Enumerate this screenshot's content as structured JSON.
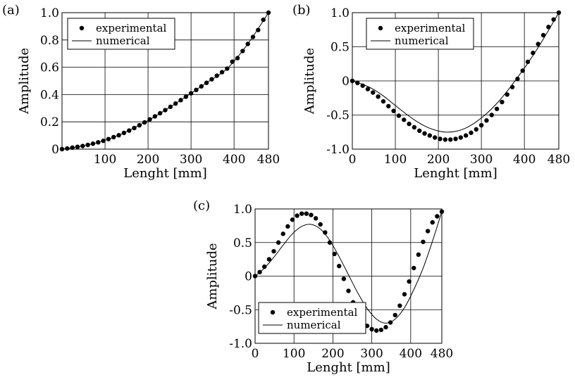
{
  "chart_data": [
    {
      "panel_label": "(a)",
      "type": "scatter",
      "xlabel": "Lenght  [mm]",
      "ylabel": "Amplitude",
      "xlim": [
        0,
        480
      ],
      "ylim": [
        0,
        1.0
      ],
      "xticks": [
        100,
        200,
        300,
        400,
        480
      ],
      "xtick_labels": [
        "100",
        "200",
        "300",
        "400",
        "480"
      ],
      "yticks": [
        0,
        0.2,
        0.4,
        0.6,
        0.8,
        1.0
      ],
      "ytick_labels": [
        "0",
        "0.2",
        "0.4",
        "0.6",
        "0.8",
        "1.0"
      ],
      "grid": true,
      "legend_position": "top-left",
      "series": [
        {
          "name": "experimental",
          "style": "markers",
          "x": [
            0,
            12,
            24,
            36,
            48,
            60,
            72,
            84,
            96,
            108,
            120,
            132,
            144,
            156,
            168,
            180,
            192,
            204,
            216,
            228,
            240,
            252,
            264,
            276,
            288,
            300,
            312,
            324,
            336,
            348,
            360,
            372,
            384,
            396,
            408,
            420,
            432,
            444,
            456,
            468,
            480
          ],
          "y": [
            0.0,
            0.005,
            0.011,
            0.017,
            0.023,
            0.031,
            0.04,
            0.05,
            0.061,
            0.074,
            0.088,
            0.102,
            0.119,
            0.136,
            0.155,
            0.175,
            0.196,
            0.218,
            0.24,
            0.263,
            0.286,
            0.31,
            0.334,
            0.359,
            0.384,
            0.409,
            0.434,
            0.46,
            0.486,
            0.512,
            0.538,
            0.564,
            0.59,
            0.641,
            0.667,
            0.719,
            0.771,
            0.822,
            0.873,
            0.948,
            1.0
          ]
        },
        {
          "name": "numerical",
          "style": "line",
          "x": [
            0,
            48,
            96,
            144,
            192,
            240,
            288,
            336,
            384,
            432,
            480
          ],
          "y": [
            0.0,
            0.023,
            0.061,
            0.119,
            0.196,
            0.286,
            0.384,
            0.486,
            0.59,
            0.771,
            1.0
          ]
        }
      ]
    },
    {
      "panel_label": "(b)",
      "type": "scatter",
      "xlabel": "Lenght  [mm]",
      "ylabel": "Amplitude",
      "xlim": [
        0,
        480
      ],
      "ylim": [
        -1.0,
        1.0
      ],
      "xticks": [
        0,
        100,
        200,
        300,
        400,
        480
      ],
      "xtick_labels": [
        "0",
        "100",
        "200",
        "300",
        "400",
        "480"
      ],
      "yticks": [
        -1.0,
        -0.5,
        0,
        0.5,
        1.0
      ],
      "ytick_labels": [
        "-1.0",
        "-0.5",
        "0",
        "0.5",
        "1.0"
      ],
      "grid": true,
      "legend_position": "top-left",
      "series": [
        {
          "name": "experimental",
          "style": "markers",
          "x": [
            0,
            12,
            24,
            36,
            48,
            60,
            72,
            84,
            96,
            108,
            120,
            132,
            144,
            156,
            168,
            180,
            192,
            204,
            216,
            228,
            240,
            252,
            264,
            276,
            288,
            300,
            312,
            324,
            336,
            348,
            360,
            372,
            384,
            396,
            408,
            420,
            432,
            444,
            456,
            468,
            480
          ],
          "y": [
            0.0,
            -0.03,
            -0.07,
            -0.12,
            -0.17,
            -0.23,
            -0.3,
            -0.37,
            -0.44,
            -0.51,
            -0.57,
            -0.63,
            -0.68,
            -0.73,
            -0.77,
            -0.8,
            -0.83,
            -0.85,
            -0.86,
            -0.86,
            -0.85,
            -0.83,
            -0.8,
            -0.76,
            -0.71,
            -0.65,
            -0.58,
            -0.5,
            -0.41,
            -0.31,
            -0.2,
            -0.09,
            0.03,
            0.15,
            0.28,
            0.41,
            0.54,
            0.67,
            0.79,
            0.9,
            1.0
          ]
        },
        {
          "name": "numerical",
          "style": "line",
          "x": [
            0,
            24,
            48,
            72,
            96,
            120,
            144,
            168,
            192,
            216,
            240,
            264,
            288,
            312,
            336,
            360,
            384,
            408,
            432,
            456,
            480
          ],
          "y": [
            0.0,
            -0.05,
            -0.12,
            -0.22,
            -0.34,
            -0.46,
            -0.57,
            -0.66,
            -0.72,
            -0.75,
            -0.74,
            -0.69,
            -0.6,
            -0.48,
            -0.33,
            -0.15,
            0.05,
            0.26,
            0.49,
            0.74,
            1.0
          ]
        }
      ]
    },
    {
      "panel_label": "(c)",
      "type": "scatter",
      "xlabel": "Lenght  [mm]",
      "ylabel": "Amplitude",
      "xlim": [
        0,
        480
      ],
      "ylim": [
        -1.0,
        1.0
      ],
      "xticks": [
        0,
        100,
        200,
        300,
        400,
        480
      ],
      "xtick_labels": [
        "0",
        "100",
        "200",
        "300",
        "400",
        "480"
      ],
      "yticks": [
        -1.0,
        -0.5,
        0,
        0.5,
        1.0
      ],
      "ytick_labels": [
        "-1.0",
        "-0.5",
        "0",
        "0.5",
        "1.0"
      ],
      "grid": true,
      "legend_position": "bottom-left",
      "series": [
        {
          "name": "experimental",
          "style": "markers",
          "x": [
            0,
            12,
            24,
            36,
            48,
            60,
            72,
            84,
            96,
            108,
            120,
            132,
            144,
            156,
            168,
            180,
            192,
            204,
            216,
            228,
            240,
            252,
            264,
            276,
            288,
            300,
            312,
            324,
            336,
            348,
            360,
            372,
            384,
            396,
            408,
            420,
            432,
            444,
            456,
            468,
            480
          ],
          "y": [
            0.0,
            0.06,
            0.14,
            0.25,
            0.37,
            0.5,
            0.63,
            0.74,
            0.84,
            0.9,
            0.93,
            0.93,
            0.91,
            0.86,
            0.77,
            0.65,
            0.5,
            0.33,
            0.15,
            -0.04,
            -0.22,
            -0.39,
            -0.54,
            -0.66,
            -0.74,
            -0.79,
            -0.81,
            -0.8,
            -0.76,
            -0.69,
            -0.58,
            -0.44,
            -0.27,
            -0.08,
            0.12,
            0.32,
            0.51,
            0.67,
            0.8,
            0.89,
            0.96
          ]
        },
        {
          "name": "numerical",
          "style": "line",
          "x": [
            0,
            24,
            48,
            72,
            96,
            120,
            144,
            168,
            192,
            216,
            240,
            264,
            288,
            312,
            336,
            360,
            384,
            408,
            432,
            456,
            480
          ],
          "y": [
            0.0,
            0.12,
            0.28,
            0.46,
            0.63,
            0.74,
            0.77,
            0.7,
            0.53,
            0.29,
            0.02,
            -0.25,
            -0.48,
            -0.64,
            -0.7,
            -0.64,
            -0.47,
            -0.2,
            0.12,
            0.52,
            0.96
          ]
        }
      ]
    }
  ]
}
